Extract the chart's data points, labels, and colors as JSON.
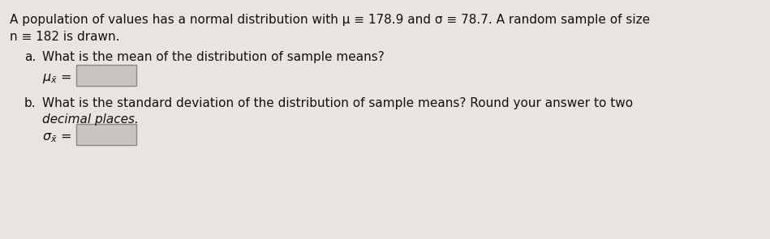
{
  "bg_color": "#e8e4e0",
  "text_color": "#111111",
  "line1": "A population of values has a normal distribution with μ ≡ 178.9 and σ ≡ 78.7. A random sample of size",
  "line2": "n ≡ 182 is drawn.",
  "part_a_label": "a.",
  "part_a_text": "What is the mean of the distribution of sample means?",
  "part_b_label": "b.",
  "part_b_text1": "What is the standard deviation of the distribution of sample means? Round your answer to two",
  "part_b_text2": "decimal places.",
  "font_size": 11.0,
  "box_facecolor": "#c8c4c0",
  "box_edgecolor": "#888888"
}
